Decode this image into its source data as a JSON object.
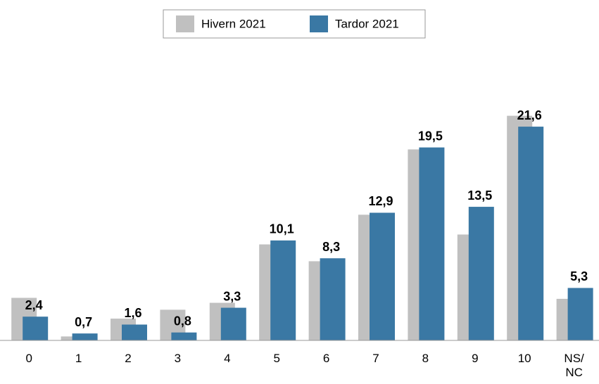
{
  "chart_data": {
    "type": "bar",
    "categories": [
      "0",
      "1",
      "2",
      "3",
      "4",
      "5",
      "6",
      "7",
      "8",
      "9",
      "10",
      "NS/\nNC"
    ],
    "series": [
      {
        "name": "Hivern 2021",
        "color": "#c0c0c0",
        "values": [
          4.3,
          0.4,
          2.2,
          3.1,
          3.8,
          9.7,
          8.0,
          12.7,
          19.3,
          10.7,
          22.7,
          4.2
        ]
      },
      {
        "name": "Tardor 2021",
        "color": "#3a78a4",
        "values": [
          2.4,
          0.7,
          1.6,
          0.8,
          3.3,
          10.1,
          8.3,
          12.9,
          19.5,
          13.5,
          21.6,
          5.3
        ],
        "value_labels": [
          "2,4",
          "0,7",
          "1,6",
          "0,8",
          "3,3",
          "10,1",
          "8,3",
          "12,9",
          "19,5",
          "13,5",
          "21,6",
          "5,3"
        ]
      }
    ],
    "ylim": [
      0,
      25
    ],
    "legend": "top"
  }
}
